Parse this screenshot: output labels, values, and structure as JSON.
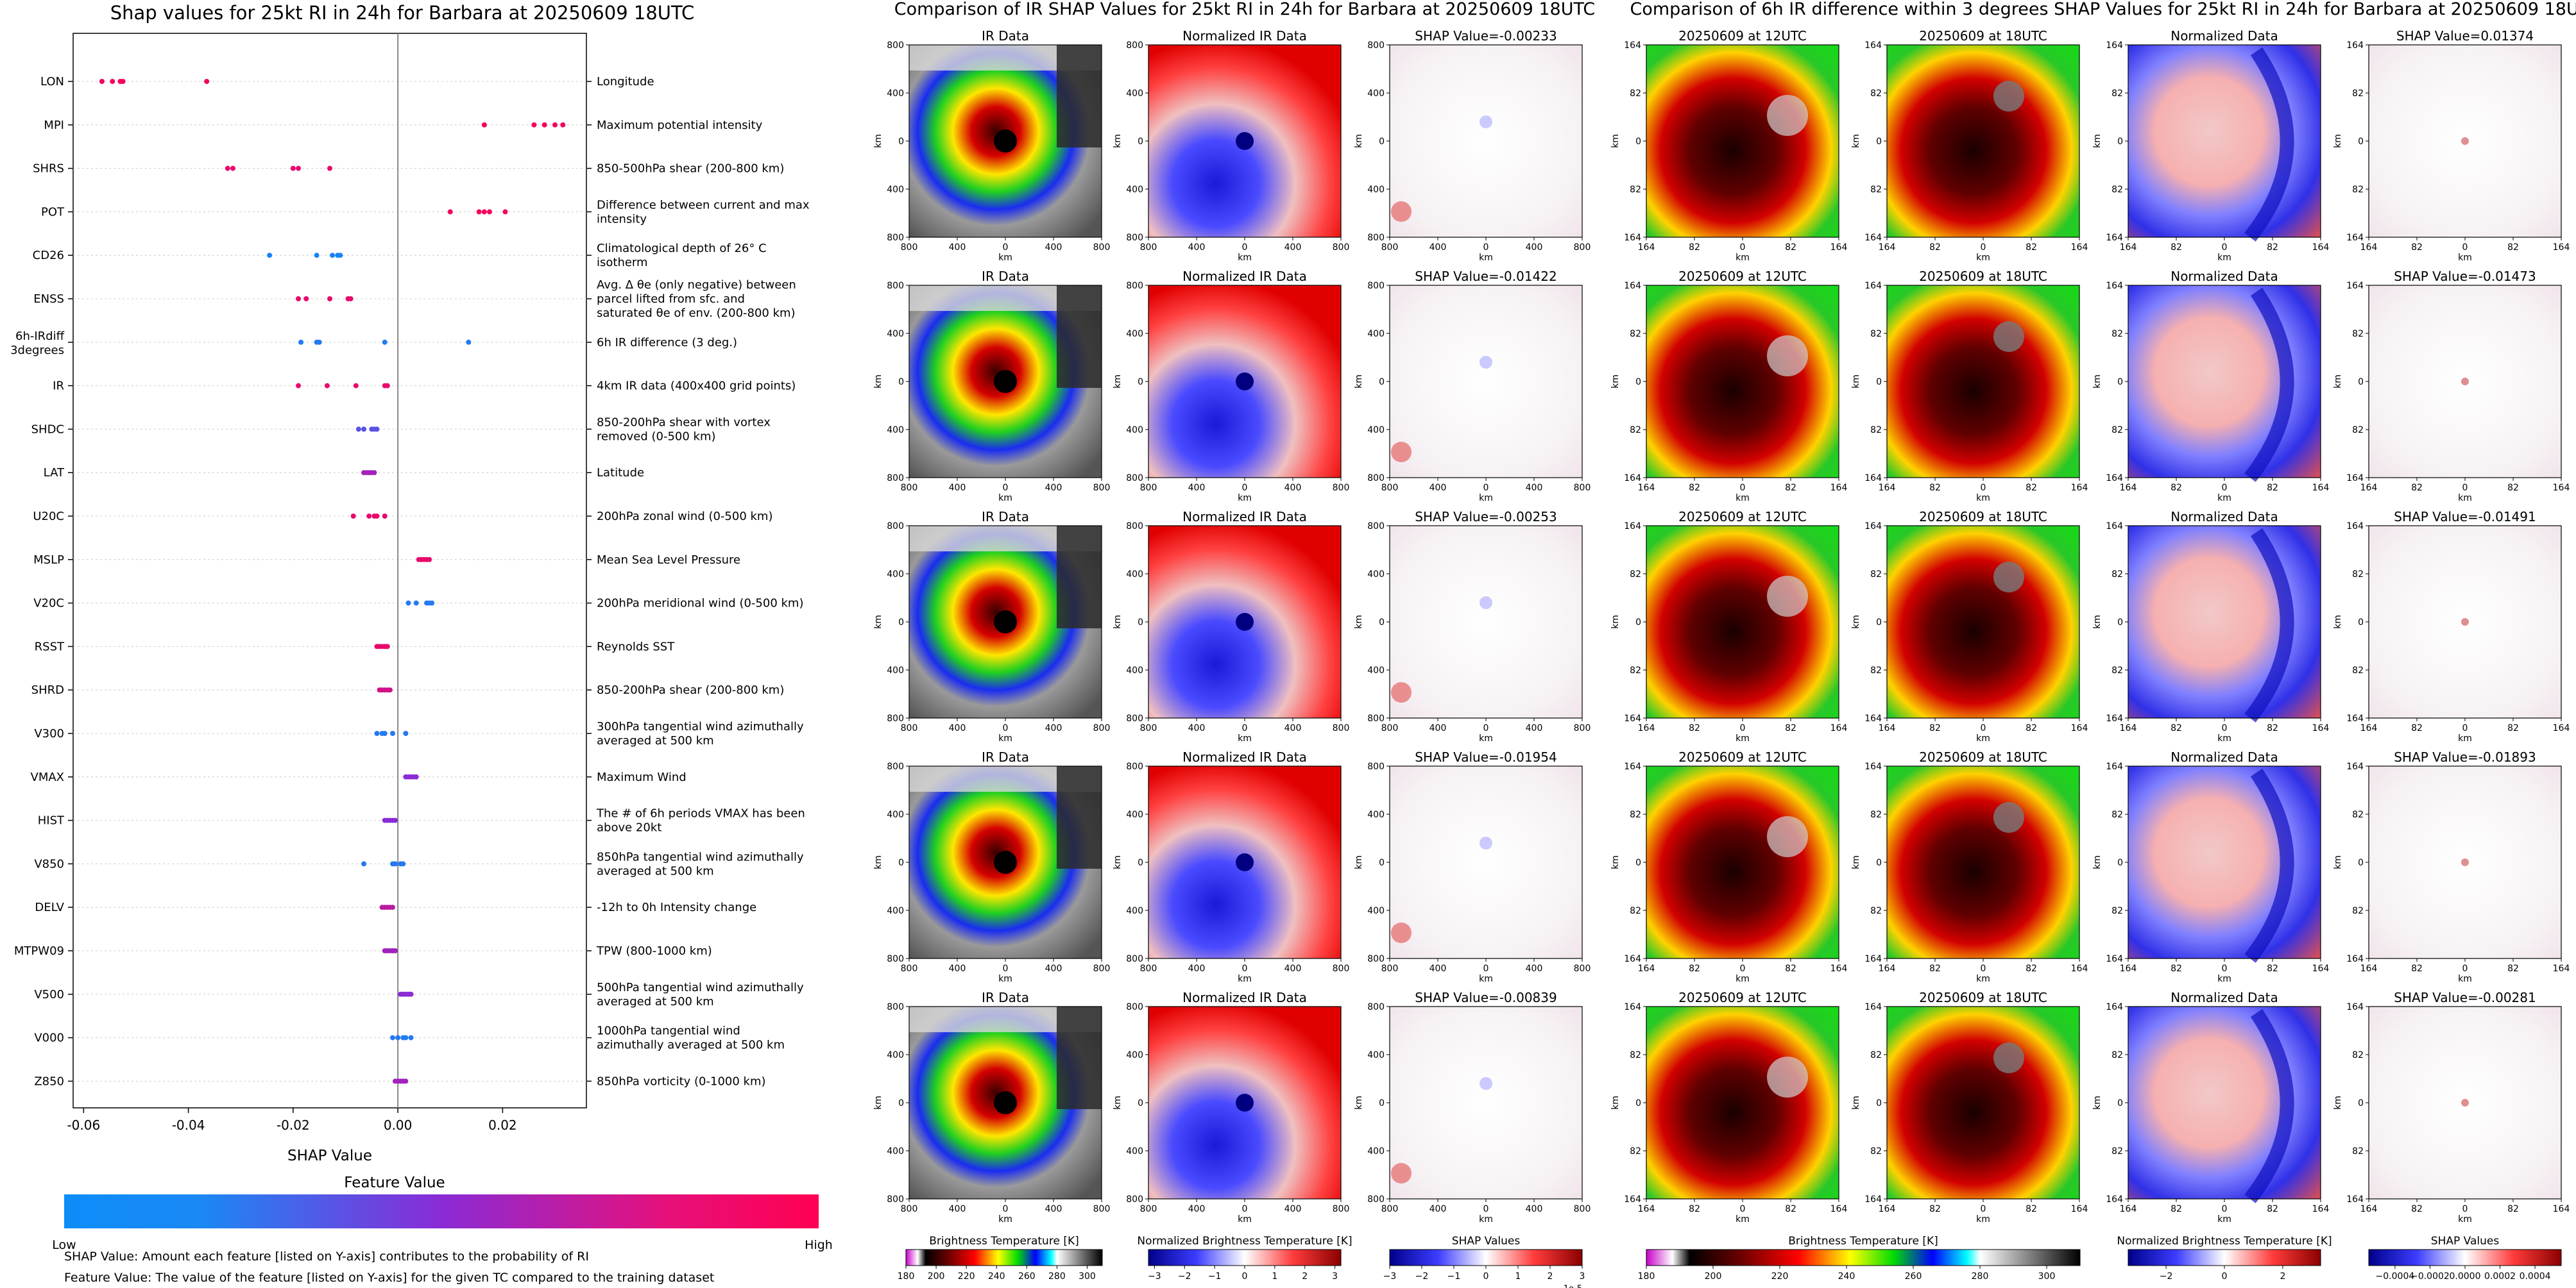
{
  "colors": {
    "shap_low": "#0c8df8",
    "shap_mid": "#8a2bd6",
    "shap_high": "#ff0052",
    "gridline": "#cccccc"
  },
  "notes": {
    "shap_value": "SHAP Value: Amount each feature [listed on Y-axis] contributes to the probability of RI",
    "feature_value": "Feature Value: The value of the feature [listed on Y-axis] for the given TC compared to the training dataset"
  },
  "chart_data": [
    {
      "type": "scatter",
      "title": "Shap values for 25kt RI in 24h for Barbara at 20250609 18UTC",
      "xlabel": "SHAP Value",
      "xlim": [
        -0.062,
        0.036
      ],
      "xticks": [
        "-0.06",
        "-0.04",
        "-0.02",
        "0.00",
        "0.02"
      ],
      "colorbar": {
        "title": "Feature Value",
        "low_label": "Low",
        "high_label": "High"
      },
      "features": [
        {
          "name": "LON",
          "description": "Longitude",
          "points": [
            [
              -0.0565,
              0.95
            ],
            [
              -0.0545,
              0.95
            ],
            [
              -0.053,
              0.95
            ],
            [
              -0.0525,
              0.95
            ],
            [
              -0.0365,
              0.95
            ]
          ]
        },
        {
          "name": "MPI",
          "description": "Maximum potential intensity",
          "points": [
            [
              0.0165,
              0.95
            ],
            [
              0.026,
              0.95
            ],
            [
              0.028,
              0.95
            ],
            [
              0.03,
              0.95
            ],
            [
              0.0315,
              0.95
            ]
          ]
        },
        {
          "name": "SHRS",
          "description": "850-500hPa shear (200-800 km)",
          "points": [
            [
              -0.0325,
              0.9
            ],
            [
              -0.0315,
              0.9
            ],
            [
              -0.02,
              0.9
            ],
            [
              -0.019,
              0.9
            ],
            [
              -0.013,
              0.9
            ]
          ]
        },
        {
          "name": "POT",
          "description": "Difference between current and max intensity",
          "points": [
            [
              0.01,
              0.95
            ],
            [
              0.0155,
              0.95
            ],
            [
              0.0165,
              0.95
            ],
            [
              0.0175,
              0.95
            ],
            [
              0.0205,
              0.95
            ]
          ]
        },
        {
          "name": "CD26",
          "description": "Climatological depth of 26° C isotherm",
          "points": [
            [
              -0.0245,
              0.05
            ],
            [
              -0.0155,
              0.05
            ],
            [
              -0.0125,
              0.05
            ],
            [
              -0.0115,
              0.05
            ],
            [
              -0.011,
              0.05
            ]
          ]
        },
        {
          "name": "ENSS",
          "description": "Avg. Δ θe (only negative) between parcel lifted from sfc. and saturated θe of env. (200-800 km)",
          "points": [
            [
              -0.019,
              0.9
            ],
            [
              -0.0175,
              0.9
            ],
            [
              -0.013,
              0.9
            ],
            [
              -0.0095,
              0.9
            ],
            [
              -0.009,
              0.9
            ]
          ]
        },
        {
          "name": "6h-IRdiff 3degrees",
          "description": "6h IR difference (3 deg.)",
          "points": [
            [
              -0.0185,
              0.1
            ],
            [
              -0.0155,
              0.1
            ],
            [
              -0.015,
              0.1
            ],
            [
              -0.0025,
              0.1
            ],
            [
              0.0135,
              0.1
            ]
          ]
        },
        {
          "name": "IR",
          "description": "4km IR data (400x400 grid points)",
          "points": [
            [
              -0.019,
              0.9
            ],
            [
              -0.0135,
              0.9
            ],
            [
              -0.008,
              0.9
            ],
            [
              -0.0025,
              0.9
            ],
            [
              -0.002,
              0.9
            ]
          ]
        },
        {
          "name": "SHDC",
          "description": "850-200hPa shear with vortex removed (0-500 km)",
          "points": [
            [
              -0.0075,
              0.3
            ],
            [
              -0.0065,
              0.3
            ],
            [
              -0.005,
              0.3
            ],
            [
              -0.0045,
              0.3
            ],
            [
              -0.004,
              0.3
            ]
          ]
        },
        {
          "name": "LAT",
          "description": "Latitude",
          "points": [
            [
              -0.0065,
              0.6
            ],
            [
              -0.006,
              0.6
            ],
            [
              -0.0055,
              0.6
            ],
            [
              -0.005,
              0.6
            ],
            [
              -0.0045,
              0.6
            ]
          ]
        },
        {
          "name": "U20C",
          "description": "200hPa zonal wind (0-500 km)",
          "points": [
            [
              -0.0085,
              0.9
            ],
            [
              -0.0055,
              0.9
            ],
            [
              -0.0045,
              0.9
            ],
            [
              -0.004,
              0.9
            ],
            [
              -0.0025,
              0.9
            ]
          ]
        },
        {
          "name": "MSLP",
          "description": "Mean Sea Level Pressure",
          "points": [
            [
              0.004,
              0.9
            ],
            [
              0.0045,
              0.9
            ],
            [
              0.005,
              0.9
            ],
            [
              0.0055,
              0.9
            ],
            [
              0.006,
              0.9
            ]
          ]
        },
        {
          "name": "V20C",
          "description": "200hPa meridional wind (0-500 km)",
          "points": [
            [
              0.002,
              0.1
            ],
            [
              0.0035,
              0.1
            ],
            [
              0.0055,
              0.1
            ],
            [
              0.006,
              0.1
            ],
            [
              0.0065,
              0.1
            ]
          ]
        },
        {
          "name": "RSST",
          "description": "Reynolds SST",
          "points": [
            [
              -0.004,
              0.9
            ],
            [
              -0.0035,
              0.9
            ],
            [
              -0.003,
              0.9
            ],
            [
              -0.0025,
              0.9
            ],
            [
              -0.002,
              0.9
            ]
          ]
        },
        {
          "name": "SHRD",
          "description": "850-200hPa shear (200-800 km)",
          "points": [
            [
              -0.0035,
              0.8
            ],
            [
              -0.003,
              0.8
            ],
            [
              -0.0025,
              0.8
            ],
            [
              -0.002,
              0.8
            ],
            [
              -0.0015,
              0.8
            ]
          ]
        },
        {
          "name": "V300",
          "description": "300hPa tangential wind azimuthally averaged at 500 km",
          "points": [
            [
              -0.004,
              0.1
            ],
            [
              -0.003,
              0.1
            ],
            [
              -0.0025,
              0.1
            ],
            [
              -0.001,
              0.1
            ],
            [
              0.0015,
              0.1
            ]
          ]
        },
        {
          "name": "VMAX",
          "description": "Maximum Wind",
          "points": [
            [
              0.0015,
              0.5
            ],
            [
              0.002,
              0.5
            ],
            [
              0.0025,
              0.5
            ],
            [
              0.003,
              0.5
            ],
            [
              0.0035,
              0.5
            ]
          ]
        },
        {
          "name": "HIST",
          "description": "The # of 6h periods VMAX has been above 20kt",
          "points": [
            [
              -0.0025,
              0.5
            ],
            [
              -0.002,
              0.5
            ],
            [
              -0.0015,
              0.5
            ],
            [
              -0.001,
              0.5
            ],
            [
              -0.0005,
              0.5
            ]
          ]
        },
        {
          "name": "V850",
          "description": "850hPa tangential wind azimuthally averaged at 500 km",
          "points": [
            [
              -0.0065,
              0.1
            ],
            [
              -0.001,
              0.1
            ],
            [
              -0.0005,
              0.1
            ],
            [
              0.0005,
              0.1
            ],
            [
              0.001,
              0.1
            ]
          ]
        },
        {
          "name": "DELV",
          "description": "-12h to 0h Intensity change",
          "points": [
            [
              -0.003,
              0.7
            ],
            [
              -0.0025,
              0.7
            ],
            [
              -0.002,
              0.7
            ],
            [
              -0.0015,
              0.7
            ],
            [
              -0.001,
              0.7
            ]
          ]
        },
        {
          "name": "MTPW09",
          "description": "TPW (800-1000 km)",
          "points": [
            [
              -0.0025,
              0.6
            ],
            [
              -0.002,
              0.6
            ],
            [
              -0.0015,
              0.6
            ],
            [
              -0.001,
              0.6
            ],
            [
              -0.0005,
              0.6
            ]
          ]
        },
        {
          "name": "V500",
          "description": "500hPa tangential wind azimuthally averaged at 500 km",
          "points": [
            [
              0.0005,
              0.5
            ],
            [
              0.001,
              0.5
            ],
            [
              0.0015,
              0.5
            ],
            [
              0.002,
              0.5
            ],
            [
              0.0025,
              0.5
            ]
          ]
        },
        {
          "name": "V000",
          "description": "1000hPa tangential wind azimuthally averaged at 500 km",
          "points": [
            [
              -0.001,
              0.1
            ],
            [
              0.0,
              0.1
            ],
            [
              0.001,
              0.1
            ],
            [
              0.0015,
              0.1
            ],
            [
              0.0025,
              0.1
            ]
          ]
        },
        {
          "name": "Z850",
          "description": "850hPa vorticity (0-1000 km)",
          "points": [
            [
              -0.0005,
              0.6
            ],
            [
              0.0,
              0.6
            ],
            [
              0.0005,
              0.6
            ],
            [
              0.001,
              0.6
            ],
            [
              0.0015,
              0.6
            ]
          ]
        }
      ]
    },
    {
      "type": "heatmap",
      "title": "Comparison of IR SHAP Values for 25kt RI in 24h for Barbara at 20250609 18UTC",
      "column_titles": [
        "IR Data",
        "Normalized IR Data"
      ],
      "shap_titles": [
        "SHAP Value=-0.00233",
        "SHAP Value=-0.01422",
        "SHAP Value=-0.00253",
        "SHAP Value=-0.01954",
        "SHAP Value=-0.00839"
      ],
      "xlabel": "km",
      "ylabel": "km",
      "xticks": [
        "800",
        "400",
        "0",
        "400",
        "800"
      ],
      "yticks": [
        "800",
        "400",
        "0",
        "400",
        "800"
      ],
      "colorbars": [
        {
          "label": "Brightness Temperature [K]",
          "ticks": [
            "180",
            "200",
            "220",
            "240",
            "260",
            "280",
            "300"
          ],
          "range": [
            180,
            310
          ]
        },
        {
          "label": "Normalized Brightness Temperature [K]",
          "ticks": [
            "-3",
            "-2",
            "-1",
            "0",
            "1",
            "2",
            "3"
          ],
          "range": [
            -3.2,
            3.2
          ]
        },
        {
          "label": "SHAP Values",
          "ticks": [
            "-3",
            "-2",
            "-1",
            "0",
            "1",
            "2",
            "3"
          ],
          "range": [
            -3,
            3
          ],
          "offset": "1e-5"
        }
      ]
    },
    {
      "type": "heatmap",
      "title": "Comparison of 6h IR difference within 3 degrees SHAP Values for 25kt RI in 24h for Barbara at 20250609 18UTC",
      "column_titles": [
        "20250609 at 12UTC",
        "20250609 at 18UTC",
        "Normalized Data"
      ],
      "shap_titles": [
        "SHAP Value=0.01374",
        "SHAP Value=-0.01473",
        "SHAP Value=-0.01491",
        "SHAP Value=-0.01893",
        "SHAP Value=-0.00281"
      ],
      "xlabel": "km",
      "ylabel": "km",
      "xticks": [
        "164",
        "82",
        "0",
        "82",
        "164"
      ],
      "yticks": [
        "164",
        "82",
        "0",
        "82",
        "164"
      ],
      "colorbars": [
        {
          "label": "Brightness Temperature [K]",
          "ticks": [
            "180",
            "200",
            "220",
            "240",
            "260",
            "280",
            "300"
          ],
          "range": [
            180,
            310
          ]
        },
        {
          "label": "Normalized Brightness Temperature [K]",
          "ticks": [
            "-2",
            "0",
            "2"
          ],
          "range": [
            -3.3,
            3.3
          ]
        },
        {
          "label": "SHAP Values",
          "ticks": [
            "-0.0004",
            "-0.0002",
            "0.0000",
            "0.0002",
            "0.0004"
          ],
          "range": [
            -0.00055,
            0.00055
          ]
        }
      ]
    }
  ]
}
